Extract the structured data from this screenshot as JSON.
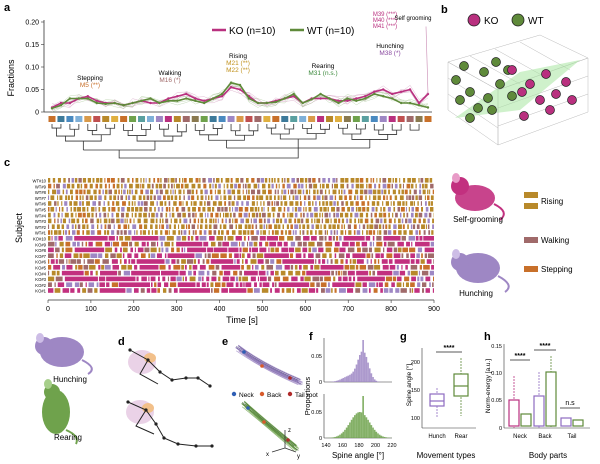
{
  "panels": {
    "a": "a",
    "b": "b",
    "c": "c",
    "d": "d",
    "e": "e",
    "f": "f",
    "g": "g",
    "h": "h"
  },
  "colors": {
    "ko": "#b9307f",
    "wt": "#5f8a3a",
    "rising": "#b8892a",
    "walking": "#a06a6a",
    "stepping": "#c8702a",
    "rising_title": "#c0901a",
    "rearing_title": "#3d8a3d",
    "self_title": "#b9307f"
  },
  "panel_a": {
    "legend": {
      "ko": "KO (n=10)",
      "wt": "WT (n=10)"
    },
    "ylabel": "Fractions",
    "yticks": [
      "0.20",
      "0.15",
      "0.10",
      "0.05",
      "0"
    ],
    "annotations": [
      {
        "title": "Stepping",
        "sub": "M5 (**)"
      },
      {
        "title": "Walking",
        "sub": "M16 (*)"
      },
      {
        "title": "Rising",
        "sub": "M21 (**)",
        "sub2": "M22 (**)"
      },
      {
        "title": "Rearing",
        "sub": "M31 (n.s.)"
      },
      {
        "title": "Hunching",
        "sub": "M38 (*)"
      },
      {
        "title": "Self grooming",
        "lines": [
          "M39 (***)",
          "M40 (***)",
          "M41 (***)"
        ]
      }
    ]
  },
  "chart_data": {
    "type": "line",
    "title": "",
    "xlabel": "",
    "ylabel": "Fractions",
    "ylim": [
      0,
      0.2
    ],
    "series": [
      {
        "name": "KO (n=10)",
        "values": [
          0.01,
          0.02,
          0.02,
          0.03,
          0.035,
          0.025,
          0.02,
          0.02,
          0.015,
          0.02,
          0.025,
          0.02,
          0.02,
          0.03,
          0.035,
          0.04,
          0.03,
          0.025,
          0.03,
          0.035,
          0.055,
          0.05,
          0.035,
          0.02,
          0.02,
          0.025,
          0.03,
          0.035,
          0.02,
          0.03,
          0.03,
          0.03,
          0.025,
          0.025,
          0.03,
          0.035,
          0.045,
          0.05,
          0.04,
          0.045,
          0.05,
          0.02,
          0.04
        ]
      },
      {
        "name": "WT (n=10)",
        "values": [
          0.008,
          0.015,
          0.03,
          0.03,
          0.03,
          0.02,
          0.018,
          0.02,
          0.015,
          0.02,
          0.025,
          0.03,
          0.02,
          0.025,
          0.025,
          0.03,
          0.025,
          0.02,
          0.03,
          0.04,
          0.065,
          0.06,
          0.03,
          0.02,
          0.02,
          0.022,
          0.03,
          0.04,
          0.02,
          0.028,
          0.04,
          0.03,
          0.02,
          0.03,
          0.025,
          0.03,
          0.04,
          0.035,
          0.03,
          0.02,
          0.02,
          0.015,
          0.01
        ]
      }
    ]
  },
  "panel_b": {
    "legend": {
      "ko": "KO",
      "wt": "WT"
    }
  },
  "panel_c": {
    "ylabel": "Subject",
    "xlabel": "Time [s]",
    "xticks": [
      "0",
      "100",
      "200",
      "300",
      "400",
      "500",
      "600",
      "700",
      "800",
      "900"
    ],
    "subjects": [
      "WT#10",
      "WT#9",
      "WT#8",
      "WT#7",
      "WT#6",
      "WT#5",
      "WT#4",
      "WT#3",
      "WT#2",
      "WT#1",
      "KO#10",
      "KO#9",
      "KO#8",
      "KO#7",
      "KO#6",
      "KO#5",
      "KO#4",
      "KO#3",
      "KO#2",
      "KO#1"
    ],
    "legend": [
      {
        "label": "Rising"
      },
      {
        "label": "Walking"
      },
      {
        "label": "Stepping"
      }
    ],
    "mouse_labels": {
      "top": "Self-grooming",
      "bottom": "Hunching"
    }
  },
  "panel_d": {
    "labels": {
      "top": "Hunching",
      "bottom": "Rearing"
    }
  },
  "panel_e": {
    "legend": [
      {
        "label": "Neck"
      },
      {
        "label": "Back"
      },
      {
        "label": "Tail root"
      }
    ],
    "axes": {
      "x": "x",
      "y": "y",
      "z": "z"
    }
  },
  "panel_f": {
    "ylabel": "Proportions",
    "xlabel": "Spine angle [°]",
    "xticks": [
      "140",
      "160",
      "180",
      "200",
      "220"
    ],
    "yticks_top": [
      "0.05",
      "0"
    ],
    "yticks_bot": [
      "0.05",
      "0"
    ]
  },
  "panel_g": {
    "ylabel": "Spine angle [°]",
    "xlabel": "Movement types",
    "categories": [
      "Hunch",
      "Rear"
    ],
    "sig": "****",
    "yticks": [
      "200",
      "150",
      "100"
    ]
  },
  "panel_h": {
    "ylabel": "Norm-energy [a.u.]",
    "xlabel": "Body parts",
    "categories": [
      "Neck",
      "Back",
      "Tail"
    ],
    "sig": [
      "****",
      "****",
      "n.s"
    ],
    "yticks": [
      "0.15",
      "0.10",
      "0.05",
      "0"
    ]
  }
}
